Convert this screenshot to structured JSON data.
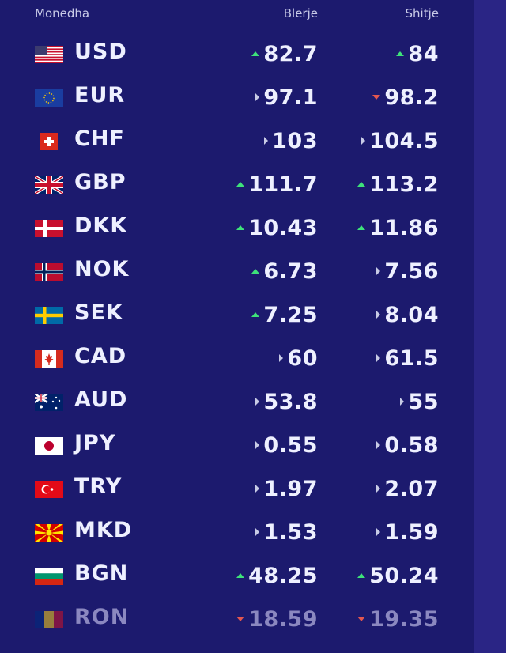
{
  "header": {
    "currency": "Monedha",
    "buy": "Blerje",
    "sell": "Shitje"
  },
  "rates": [
    {
      "code": "USD",
      "flag": "us-flag-icon",
      "buy": "82.7",
      "buy_trend": "up",
      "sell": "84",
      "sell_trend": "up"
    },
    {
      "code": "EUR",
      "flag": "eu-flag-icon",
      "buy": "97.1",
      "buy_trend": "flat",
      "sell": "98.2",
      "sell_trend": "down"
    },
    {
      "code": "CHF",
      "flag": "ch-flag-icon",
      "buy": "103",
      "buy_trend": "flat",
      "sell": "104.5",
      "sell_trend": "flat"
    },
    {
      "code": "GBP",
      "flag": "gb-flag-icon",
      "buy": "111.7",
      "buy_trend": "up",
      "sell": "113.2",
      "sell_trend": "up"
    },
    {
      "code": "DKK",
      "flag": "dk-flag-icon",
      "buy": "10.43",
      "buy_trend": "up",
      "sell": "11.86",
      "sell_trend": "up"
    },
    {
      "code": "NOK",
      "flag": "no-flag-icon",
      "buy": "6.73",
      "buy_trend": "up",
      "sell": "7.56",
      "sell_trend": "flat"
    },
    {
      "code": "SEK",
      "flag": "se-flag-icon",
      "buy": "7.25",
      "buy_trend": "up",
      "sell": "8.04",
      "sell_trend": "flat"
    },
    {
      "code": "CAD",
      "flag": "ca-flag-icon",
      "buy": "60",
      "buy_trend": "flat",
      "sell": "61.5",
      "sell_trend": "flat"
    },
    {
      "code": "AUD",
      "flag": "au-flag-icon",
      "buy": "53.8",
      "buy_trend": "flat",
      "sell": "55",
      "sell_trend": "flat"
    },
    {
      "code": "JPY",
      "flag": "jp-flag-icon",
      "buy": "0.55",
      "buy_trend": "flat",
      "sell": "0.58",
      "sell_trend": "flat"
    },
    {
      "code": "TRY",
      "flag": "tr-flag-icon",
      "buy": "1.97",
      "buy_trend": "flat",
      "sell": "2.07",
      "sell_trend": "flat"
    },
    {
      "code": "MKD",
      "flag": "mk-flag-icon",
      "buy": "1.53",
      "buy_trend": "flat",
      "sell": "1.59",
      "sell_trend": "flat"
    },
    {
      "code": "BGN",
      "flag": "bg-flag-icon",
      "buy": "48.25",
      "buy_trend": "up",
      "sell": "50.24",
      "sell_trend": "up"
    },
    {
      "code": "RON",
      "flag": "ro-flag-icon",
      "buy": "18.59",
      "buy_trend": "down",
      "sell": "19.35",
      "sell_trend": "down"
    }
  ],
  "colors": {
    "background": "#1c1a6e",
    "up": "#3ee27a",
    "down": "#e4574f",
    "flat": "#c8cbe6"
  }
}
